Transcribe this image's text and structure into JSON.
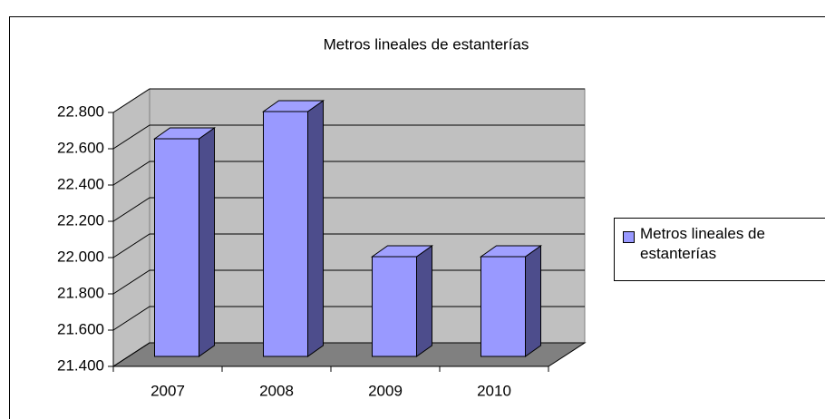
{
  "chart_data": {
    "type": "bar3d",
    "title": "Metros lineales de estanterías",
    "categories": [
      "2007",
      "2008",
      "2009",
      "2010"
    ],
    "series": [
      {
        "name": "Metros lineales de estanterías",
        "color": "#9999ff",
        "values": [
          22600,
          22750,
          21950,
          21950
        ]
      }
    ],
    "ylim": [
      21400,
      22800
    ],
    "yticks": [
      {
        "value": 21400,
        "label": "21.400"
      },
      {
        "value": 21600,
        "label": "21.600"
      },
      {
        "value": 21800,
        "label": "21.800"
      },
      {
        "value": 22000,
        "label": "22.000"
      },
      {
        "value": 22200,
        "label": "22.200"
      },
      {
        "value": 22400,
        "label": "22.400"
      },
      {
        "value": 22600,
        "label": "22.600"
      },
      {
        "value": 22800,
        "label": "22.800"
      }
    ],
    "grid": true,
    "legend": "right"
  }
}
